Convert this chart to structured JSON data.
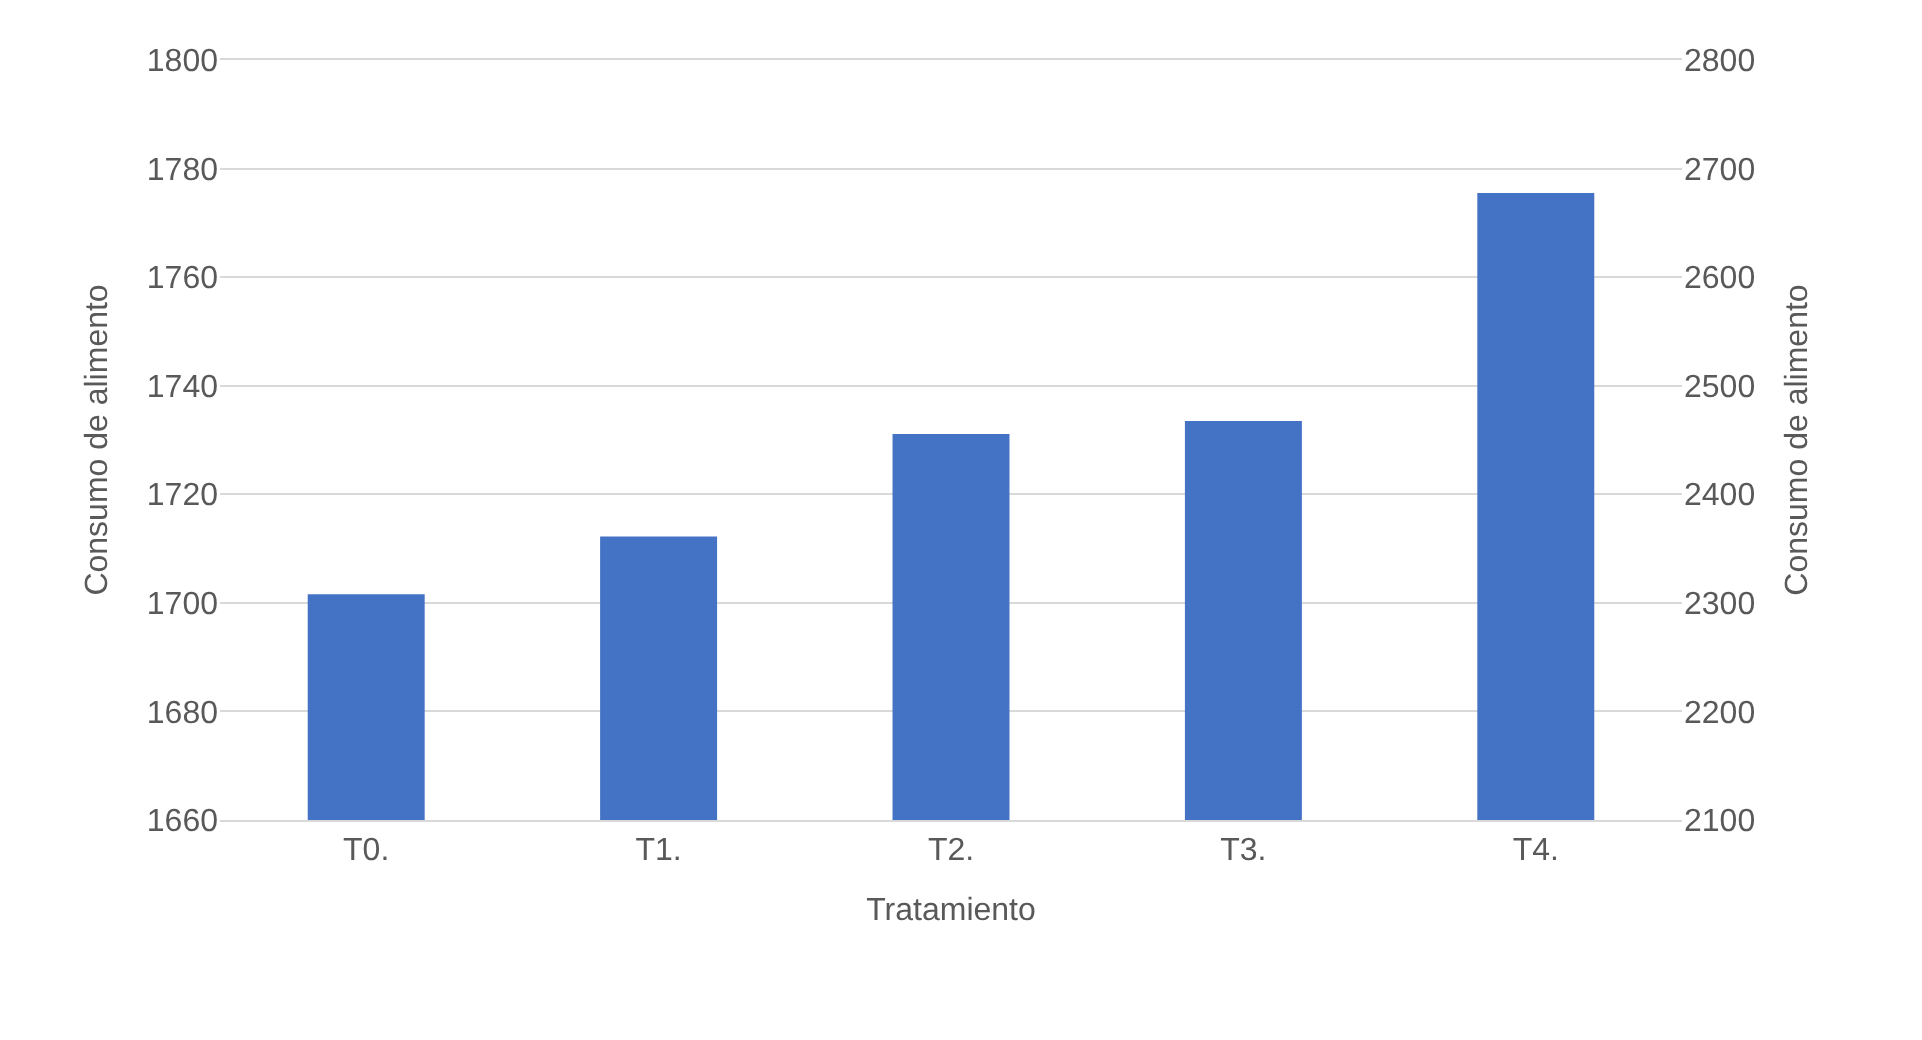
{
  "chart_data": {
    "type": "bar",
    "xlabel": "Tratamiento",
    "ylabel": "Consumo de alimento",
    "y2label": "Consumo de alimento",
    "categories": [
      "T0.",
      "T1.",
      "T2.",
      "T3.",
      "T4."
    ],
    "series": [
      {
        "color": "#4472c4",
        "values": [
          1701.6,
          1712.2,
          1731.1,
          1733.5,
          1775.5
        ]
      }
    ],
    "ylim": [
      1660,
      1800
    ],
    "yticks": [
      1660,
      1680,
      1700,
      1720,
      1740,
      1760,
      1780,
      1800
    ],
    "y2lim": [
      2100,
      2800
    ],
    "y2ticks": [
      2100,
      2200,
      2300,
      2400,
      2500,
      2600,
      2700,
      2800
    ],
    "grid": "y"
  }
}
